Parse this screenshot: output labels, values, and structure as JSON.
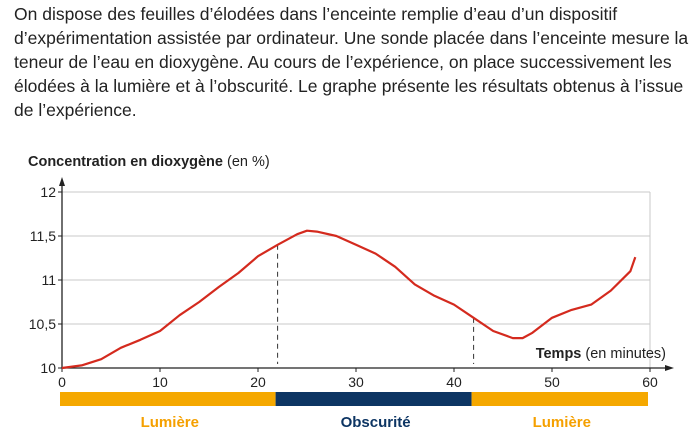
{
  "intro_text": "On dispose des feuilles d’élodées dans l’enceinte remplie d’eau d’un dispositif d’expérimentation assistée par ordinateur. Une sonde placée dans l’enceinte mesure la teneur de l’eau en dioxygène. Au cours de l’expérience, on place successivement les élodées à la lumière et à l’obscurité. Le graphe présente les résultats obtenus à l’issue de l’expérience.",
  "chart_data": {
    "type": "line",
    "ylabel_bold": "Concentration en dioxygène",
    "ylabel_unit": "(en %)",
    "xlabel_bold": "Temps",
    "xlabel_unit": "(en minutes)",
    "xlim": [
      0,
      60
    ],
    "ylim": [
      10,
      12
    ],
    "xticks": [
      0,
      10,
      20,
      30,
      40,
      50,
      60
    ],
    "yticks": [
      10,
      10.5,
      11,
      11.5,
      12
    ],
    "ytick_labels": [
      "10",
      "10,5",
      "11",
      "11,5",
      "12"
    ],
    "grid": true,
    "line_color": "#d42a1e",
    "series": [
      {
        "name": "Concentration en dioxygène",
        "x": [
          0,
          2,
          4,
          6,
          8,
          10,
          12,
          14,
          16,
          18,
          20,
          22,
          24,
          25,
          26,
          28,
          30,
          32,
          34,
          36,
          38,
          40,
          42,
          44,
          46,
          47,
          48,
          50,
          52,
          54,
          56,
          58,
          58.5
        ],
        "y": [
          10.0,
          10.03,
          10.1,
          10.23,
          10.32,
          10.42,
          10.6,
          10.75,
          10.92,
          11.08,
          11.27,
          11.4,
          11.52,
          11.56,
          11.55,
          11.5,
          11.4,
          11.3,
          11.15,
          10.95,
          10.82,
          10.72,
          10.57,
          10.42,
          10.34,
          10.34,
          10.4,
          10.57,
          10.66,
          10.72,
          10.88,
          11.1,
          11.26
        ]
      }
    ],
    "markers": [
      22,
      42
    ],
    "phases": [
      {
        "label": "Lumière",
        "start": 0,
        "end": 22,
        "color": "#f5a800",
        "text_color": "#f5a000"
      },
      {
        "label": "Obscurité",
        "start": 22,
        "end": 42,
        "color": "#0d3563",
        "text_color": "#0d3563"
      },
      {
        "label": "Lumière",
        "start": 42,
        "end": 60,
        "color": "#f5a800",
        "text_color": "#f5a000"
      }
    ]
  }
}
